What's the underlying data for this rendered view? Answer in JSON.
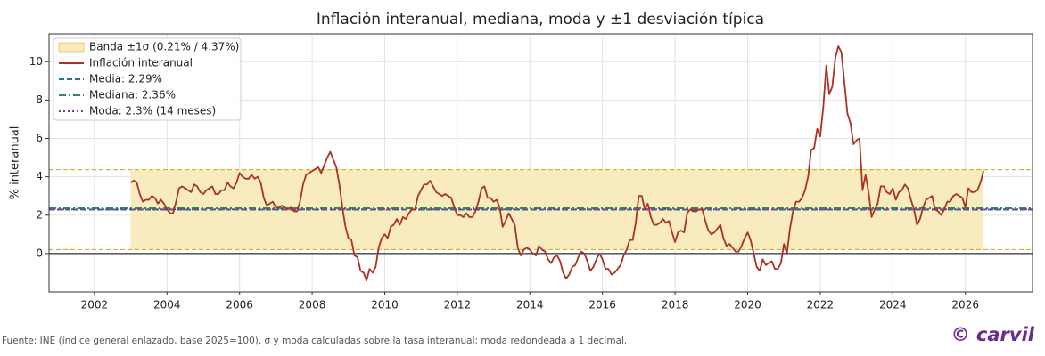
{
  "chart_data": {
    "type": "line",
    "title": "Inflación interanual, mediana, moda y ±1 desviación típica",
    "y_label": "% interanual",
    "footer": "Fuente: INE (índice general enlazado, base 2025=100). σ y moda calculadas sobre la tasa interanual; moda redondeada a 1 decimal.",
    "watermark": "© carvil",
    "xlim": [
      2000.75,
      2027.85
    ],
    "ylim": [
      -2,
      11.45
    ],
    "xticks": [
      2002,
      2004,
      2006,
      2008,
      2010,
      2012,
      2014,
      2016,
      2018,
      2020,
      2022,
      2024,
      2026
    ],
    "yticks": [
      0,
      2,
      4,
      6,
      8,
      10
    ],
    "grid": true,
    "legend": "upper left",
    "band": {
      "name": "Banda ±1σ (0.21% / 4.37%)",
      "low": 0.21,
      "high": 4.37,
      "color": "#f8ecbf",
      "edge": "#c9a80a"
    },
    "reference_lines": [
      {
        "name": "Media: 2.29%",
        "value": 2.29,
        "color": "#2f6f94",
        "style": "dashed"
      },
      {
        "name": "Mediana: 2.36%",
        "value": 2.36,
        "color": "#2e8b57",
        "style": "dashdot"
      },
      {
        "name": "Moda: 2.3% (14 meses)",
        "value": 2.3,
        "color": "#7d3c98",
        "style": "dotted"
      }
    ],
    "x": [
      2003,
      2003.083,
      2003.167,
      2003.25,
      2003.333,
      2003.417,
      2003.5,
      2003.583,
      2003.667,
      2003.75,
      2003.833,
      2003.917,
      2004,
      2004.083,
      2004.167,
      2004.25,
      2004.333,
      2004.417,
      2004.5,
      2004.583,
      2004.667,
      2004.75,
      2004.833,
      2004.917,
      2005,
      2005.083,
      2005.167,
      2005.25,
      2005.333,
      2005.417,
      2005.5,
      2005.583,
      2005.667,
      2005.75,
      2005.833,
      2005.917,
      2006,
      2006.083,
      2006.167,
      2006.25,
      2006.333,
      2006.417,
      2006.5,
      2006.583,
      2006.667,
      2006.75,
      2006.833,
      2006.917,
      2007,
      2007.083,
      2007.167,
      2007.25,
      2007.333,
      2007.417,
      2007.5,
      2007.583,
      2007.667,
      2007.75,
      2007.833,
      2007.917,
      2008,
      2008.083,
      2008.167,
      2008.25,
      2008.333,
      2008.417,
      2008.5,
      2008.583,
      2008.667,
      2008.75,
      2008.833,
      2008.917,
      2009,
      2009.083,
      2009.167,
      2009.25,
      2009.333,
      2009.417,
      2009.5,
      2009.583,
      2009.667,
      2009.75,
      2009.833,
      2009.917,
      2010,
      2010.083,
      2010.167,
      2010.25,
      2010.333,
      2010.417,
      2010.5,
      2010.583,
      2010.667,
      2010.75,
      2010.833,
      2010.917,
      2011,
      2011.083,
      2011.167,
      2011.25,
      2011.333,
      2011.417,
      2011.5,
      2011.583,
      2011.667,
      2011.75,
      2011.833,
      2011.917,
      2012,
      2012.083,
      2012.167,
      2012.25,
      2012.333,
      2012.417,
      2012.5,
      2012.583,
      2012.667,
      2012.75,
      2012.833,
      2012.917,
      2013,
      2013.083,
      2013.167,
      2013.25,
      2013.333,
      2013.417,
      2013.5,
      2013.583,
      2013.667,
      2013.75,
      2013.833,
      2013.917,
      2014,
      2014.083,
      2014.167,
      2014.25,
      2014.333,
      2014.417,
      2014.5,
      2014.583,
      2014.667,
      2014.75,
      2014.833,
      2014.917,
      2015,
      2015.083,
      2015.167,
      2015.25,
      2015.333,
      2015.417,
      2015.5,
      2015.583,
      2015.667,
      2015.75,
      2015.833,
      2015.917,
      2016,
      2016.083,
      2016.167,
      2016.25,
      2016.333,
      2016.417,
      2016.5,
      2016.583,
      2016.667,
      2016.75,
      2016.833,
      2016.917,
      2017,
      2017.083,
      2017.167,
      2017.25,
      2017.333,
      2017.417,
      2017.5,
      2017.583,
      2017.667,
      2017.75,
      2017.833,
      2017.917,
      2018,
      2018.083,
      2018.167,
      2018.25,
      2018.333,
      2018.417,
      2018.5,
      2018.583,
      2018.667,
      2018.75,
      2018.833,
      2018.917,
      2019,
      2019.083,
      2019.167,
      2019.25,
      2019.333,
      2019.417,
      2019.5,
      2019.583,
      2019.667,
      2019.75,
      2019.833,
      2019.917,
      2020,
      2020.083,
      2020.167,
      2020.25,
      2020.333,
      2020.417,
      2020.5,
      2020.583,
      2020.667,
      2020.75,
      2020.833,
      2020.917,
      2021,
      2021.083,
      2021.167,
      2021.25,
      2021.333,
      2021.417,
      2021.5,
      2021.583,
      2021.667,
      2021.75,
      2021.833,
      2021.917,
      2022,
      2022.083,
      2022.167,
      2022.25,
      2022.333,
      2022.417,
      2022.5,
      2022.583,
      2022.667,
      2022.75,
      2022.833,
      2022.917,
      2023,
      2023.083,
      2023.167,
      2023.25,
      2023.333,
      2023.417,
      2023.5,
      2023.583,
      2023.667,
      2023.75,
      2023.833,
      2023.917,
      2024,
      2024.083,
      2024.167,
      2024.25,
      2024.333,
      2024.417,
      2024.5,
      2024.583,
      2024.667,
      2024.75,
      2024.833,
      2024.917,
      2025,
      2025.083,
      2025.167,
      2025.25,
      2025.333,
      2025.417,
      2025.5,
      2025.583,
      2025.667,
      2025.75,
      2025.833,
      2025.917,
      2026,
      2026.083,
      2026.167,
      2026.25,
      2026.333,
      2026.417,
      2026.5
    ],
    "series": [
      {
        "name": "Inflación interanual",
        "color": "#a93226",
        "values": [
          3.7,
          3.8,
          3.7,
          3.1,
          2.7,
          2.8,
          2.8,
          3.0,
          2.9,
          2.6,
          2.8,
          2.6,
          2.3,
          2.1,
          2.1,
          2.7,
          3.4,
          3.5,
          3.4,
          3.3,
          3.2,
          3.6,
          3.5,
          3.2,
          3.1,
          3.3,
          3.4,
          3.5,
          3.1,
          3.1,
          3.3,
          3.3,
          3.7,
          3.5,
          3.4,
          3.7,
          4.2,
          4.0,
          3.9,
          3.9,
          4.1,
          3.9,
          4.0,
          3.7,
          2.9,
          2.5,
          2.6,
          2.7,
          2.4,
          2.4,
          2.5,
          2.4,
          2.3,
          2.4,
          2.2,
          2.2,
          2.7,
          3.6,
          4.1,
          4.2,
          4.3,
          4.4,
          4.5,
          4.2,
          4.6,
          5.0,
          5.3,
          4.9,
          4.5,
          3.6,
          2.4,
          1.4,
          0.8,
          0.7,
          -0.1,
          -0.2,
          -0.9,
          -1.0,
          -1.4,
          -0.8,
          -1.0,
          -0.7,
          0.3,
          0.8,
          1.0,
          0.8,
          1.4,
          1.5,
          1.8,
          1.5,
          1.9,
          1.8,
          2.1,
          2.3,
          2.3,
          3.0,
          3.3,
          3.6,
          3.6,
          3.8,
          3.5,
          3.2,
          3.1,
          3.0,
          3.1,
          3.0,
          2.9,
          2.4,
          2.0,
          2.0,
          1.9,
          2.1,
          1.9,
          1.9,
          2.2,
          2.7,
          3.4,
          3.5,
          2.9,
          2.9,
          2.7,
          2.8,
          2.4,
          1.4,
          1.7,
          2.1,
          1.8,
          1.5,
          0.3,
          -0.1,
          0.2,
          0.3,
          0.2,
          0.0,
          -0.1,
          0.4,
          0.2,
          0.1,
          -0.3,
          -0.5,
          -0.2,
          -0.1,
          -0.4,
          -1.0,
          -1.3,
          -1.1,
          -0.7,
          -0.6,
          -0.2,
          0.1,
          0.0,
          -0.4,
          -0.9,
          -0.7,
          -0.3,
          0.0,
          -0.3,
          -0.8,
          -0.8,
          -1.1,
          -1.0,
          -0.8,
          -0.6,
          -0.1,
          0.2,
          0.7,
          0.7,
          1.6,
          3.0,
          3.0,
          2.3,
          2.6,
          1.9,
          1.5,
          1.5,
          1.6,
          1.8,
          1.6,
          1.7,
          1.1,
          0.6,
          1.1,
          1.2,
          1.1,
          2.1,
          2.3,
          2.2,
          2.2,
          2.3,
          2.3,
          1.7,
          1.2,
          1.0,
          1.1,
          1.3,
          1.5,
          0.8,
          0.4,
          0.5,
          0.3,
          0.1,
          0.1,
          0.4,
          0.8,
          1.1,
          0.7,
          0.0,
          -0.7,
          -0.9,
          -0.3,
          -0.6,
          -0.5,
          -0.4,
          -0.8,
          -0.8,
          -0.5,
          0.5,
          0.0,
          1.3,
          2.2,
          2.7,
          2.7,
          2.9,
          3.3,
          4.0,
          5.4,
          5.5,
          6.5,
          6.1,
          7.6,
          9.8,
          8.3,
          8.7,
          10.2,
          10.8,
          10.5,
          8.9,
          7.3,
          6.8,
          5.7,
          5.9,
          6.0,
          3.3,
          4.1,
          3.2,
          1.9,
          2.3,
          2.6,
          3.5,
          3.5,
          3.2,
          3.1,
          3.4,
          2.8,
          3.2,
          3.3,
          3.6,
          3.4,
          2.8,
          2.3,
          1.5,
          1.8,
          2.4,
          2.8,
          2.9,
          3.0,
          2.3,
          2.2,
          2.0,
          2.3,
          2.7,
          2.7,
          3.0,
          3.1,
          3.0,
          2.9,
          2.4,
          3.4,
          3.2,
          3.2,
          3.3,
          3.7,
          4.3
        ]
      }
    ]
  }
}
